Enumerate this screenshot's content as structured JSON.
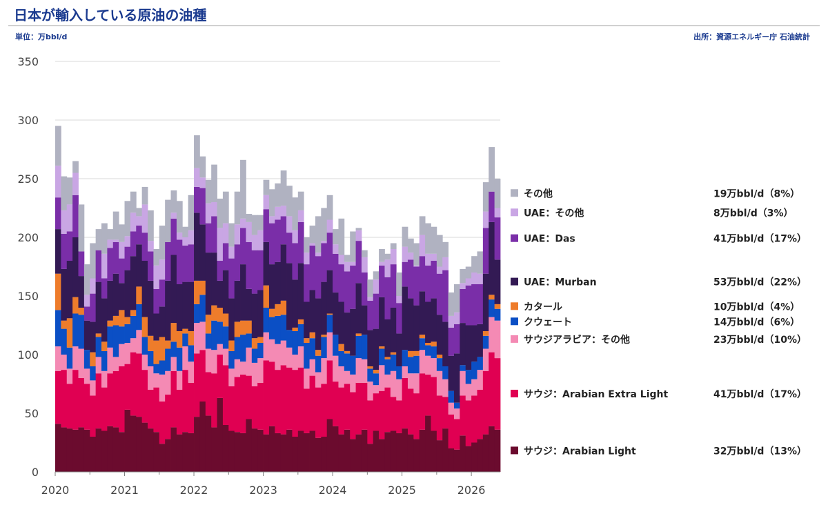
{
  "header": {
    "title": "日本が輸入している原油の油種",
    "unit": "単位：万bbl/d",
    "source": "出所：資源エネルギー庁 石油統計"
  },
  "chart_data": {
    "type": "stacked_bar",
    "y_ticks": [
      "0",
      "50",
      "100",
      "150",
      "200",
      "250",
      "300",
      "350"
    ],
    "ylim": [
      0,
      350
    ],
    "x_tick_labels": [
      "2020",
      "2021",
      "2022",
      "2023",
      "2024",
      "2025",
      "2026"
    ],
    "start": "2020-01",
    "series": [
      {
        "name": "サウジ：Arabian Light",
        "color": "#6b0b2e",
        "summary": "32万bbl/d（13%）",
        "values": [
          41,
          38,
          37,
          36,
          38,
          36,
          30,
          37,
          35,
          39,
          38,
          34,
          53,
          48,
          47,
          42,
          37,
          34,
          24,
          28,
          38,
          32,
          34,
          33,
          47,
          60,
          48,
          38,
          63,
          40,
          35,
          34,
          33,
          45,
          37,
          36,
          32,
          39,
          33,
          32,
          36,
          30,
          35,
          33,
          35,
          29,
          30,
          45,
          39,
          32,
          36,
          28,
          32,
          36,
          24,
          35,
          28,
          34,
          35,
          33,
          37,
          32,
          28,
          36,
          48,
          35,
          27,
          37,
          20,
          19,
          31,
          22,
          25,
          28,
          32,
          39,
          36
        ]
      },
      {
        "name": "サウジ：Arabian Extra Light",
        "color": "#e00052",
        "summary": "41万bbl/d（17%）",
        "values": [
          45,
          49,
          38,
          51,
          42,
          39,
          35,
          47,
          37,
          45,
          48,
          56,
          39,
          54,
          54,
          45,
          33,
          38,
          36,
          38,
          48,
          38,
          53,
          43,
          54,
          44,
          37,
          46,
          37,
          51,
          38,
          47,
          50,
          37,
          36,
          40,
          63,
          55,
          54,
          59,
          53,
          57,
          54,
          38,
          47,
          43,
          45,
          50,
          38,
          40,
          39,
          40,
          44,
          40,
          37,
          32,
          41,
          38,
          29,
          28,
          43,
          39,
          39,
          48,
          35,
          46,
          38,
          27,
          29,
          26,
          34,
          39,
          40,
          42,
          54,
          63,
          61
        ]
      },
      {
        "name": "サウジアラビア：その他",
        "color": "#f48ab4",
        "summary": "23万bbl/d（10%）",
        "values": [
          21,
          13,
          13,
          20,
          25,
          13,
          13,
          14,
          14,
          22,
          12,
          19,
          18,
          12,
          20,
          13,
          20,
          12,
          23,
          20,
          12,
          16,
          20,
          18,
          26,
          24,
          20,
          20,
          9,
          14,
          15,
          15,
          11,
          24,
          20,
          21,
          24,
          19,
          22,
          21,
          17,
          13,
          18,
          17,
          14,
          13,
          22,
          24,
          22,
          18,
          11,
          15,
          21,
          20,
          16,
          7,
          22,
          11,
          22,
          18,
          10,
          13,
          17,
          20,
          16,
          16,
          21,
          15,
          10,
          9,
          21,
          14,
          14,
          17,
          19,
          30,
          32
        ]
      },
      {
        "name": "クウェート",
        "color": "#0b4fc5",
        "summary": "14万bbl/d（6%）",
        "values": [
          31,
          22,
          18,
          28,
          29,
          16,
          12,
          17,
          17,
          18,
          27,
          15,
          16,
          19,
          22,
          15,
          13,
          8,
          12,
          19,
          13,
          20,
          11,
          14,
          16,
          23,
          13,
          25,
          19,
          19,
          15,
          19,
          23,
          12,
          12,
          13,
          21,
          19,
          24,
          22,
          15,
          20,
          19,
          22,
          18,
          14,
          18,
          15,
          18,
          13,
          15,
          16,
          19,
          21,
          11,
          10,
          14,
          13,
          14,
          11,
          14,
          14,
          15,
          10,
          9,
          10,
          11,
          11,
          10,
          5,
          5,
          12,
          15,
          11,
          11,
          15,
          10
        ]
      },
      {
        "name": "カタール",
        "color": "#ee7c2b",
        "summary": "10万bbl/d（4%）",
        "values": [
          31,
          7,
          25,
          14,
          6,
          0,
          12,
          3,
          8,
          5,
          8,
          14,
          6,
          5,
          15,
          17,
          13,
          20,
          20,
          7,
          16,
          14,
          4,
          12,
          20,
          12,
          16,
          13,
          12,
          11,
          9,
          13,
          12,
          11,
          9,
          5,
          19,
          7,
          10,
          12,
          0,
          3,
          4,
          4,
          5,
          5,
          2,
          1,
          0,
          6,
          2,
          0,
          2,
          0,
          2,
          3,
          2,
          2,
          2,
          0,
          0,
          5,
          4,
          3,
          2,
          4,
          3,
          0,
          0,
          0,
          0,
          0,
          0,
          0,
          4,
          4,
          4
        ]
      },
      {
        "name": "UAE：Murban",
        "color": "#331a54",
        "summary": "53万bbl/d（22%）",
        "values": [
          38,
          44,
          49,
          51,
          27,
          25,
          26,
          44,
          37,
          34,
          36,
          23,
          40,
          46,
          36,
          48,
          47,
          23,
          26,
          51,
          58,
          40,
          40,
          42,
          58,
          48,
          53,
          45,
          23,
          37,
          36,
          35,
          48,
          27,
          38,
          40,
          37,
          38,
          36,
          48,
          57,
          41,
          48,
          31,
          36,
          44,
          45,
          37,
          36,
          36,
          33,
          40,
          43,
          25,
          31,
          35,
          42,
          32,
          38,
          28,
          54,
          45,
          39,
          37,
          35,
          37,
          34,
          38,
          30,
          42,
          36,
          38,
          31,
          28,
          49,
          62,
          38
        ]
      },
      {
        "name": "UAE：Das",
        "color": "#7a2ea8",
        "summary": "41万bbl/d（17%）",
        "values": [
          27,
          30,
          25,
          36,
          21,
          12,
          24,
          27,
          17,
          28,
          27,
          21,
          20,
          21,
          16,
          24,
          25,
          21,
          23,
          33,
          31,
          38,
          31,
          32,
          22,
          31,
          25,
          31,
          17,
          23,
          34,
          31,
          31,
          40,
          37,
          34,
          28,
          35,
          36,
          24,
          26,
          31,
          35,
          32,
          38,
          36,
          33,
          32,
          33,
          32,
          35,
          37,
          36,
          28,
          25,
          30,
          27,
          36,
          37,
          26,
          21,
          33,
          33,
          30,
          31,
          32,
          35,
          44,
          24,
          25,
          29,
          34,
          35,
          34,
          39,
          26,
          36
        ]
      },
      {
        "name": "UAE：その他",
        "color": "#c9a6e4",
        "summary": "8万bbl/d（3%）",
        "values": [
          27,
          20,
          23,
          19,
          0,
          10,
          13,
          0,
          21,
          7,
          2,
          14,
          9,
          16,
          8,
          24,
          9,
          20,
          17,
          0,
          5,
          6,
          7,
          12,
          16,
          9,
          17,
          12,
          28,
          17,
          10,
          17,
          8,
          17,
          13,
          17,
          12,
          6,
          11,
          9,
          14,
          11,
          10,
          10,
          2,
          3,
          2,
          11,
          8,
          8,
          8,
          3,
          9,
          13,
          3,
          12,
          3,
          15,
          13,
          6,
          13,
          6,
          1,
          18,
          10,
          6,
          6,
          11,
          10,
          10,
          5,
          6,
          10,
          9,
          14,
          0,
          8
        ]
      },
      {
        "name": "その他",
        "color": "#b0b2c1",
        "summary": "19万bbl/d（8%）",
        "values": [
          34,
          29,
          23,
          10,
          40,
          26,
          30,
          18,
          26,
          9,
          24,
          15,
          30,
          18,
          7,
          15,
          26,
          14,
          29,
          36,
          19,
          27,
          9,
          30,
          28,
          18,
          20,
          32,
          25,
          27,
          20,
          28,
          50,
          7,
          17,
          13,
          13,
          23,
          20,
          30,
          26,
          28,
          16,
          13,
          15,
          31,
          28,
          21,
          13,
          31,
          6,
          26,
          2,
          6,
          15,
          7,
          11,
          5,
          5,
          20,
          17,
          12,
          19,
          16,
          26,
          23,
          27,
          13,
          20,
          24,
          12,
          10,
          14,
          19,
          25,
          38,
          25
        ]
      }
    ]
  }
}
